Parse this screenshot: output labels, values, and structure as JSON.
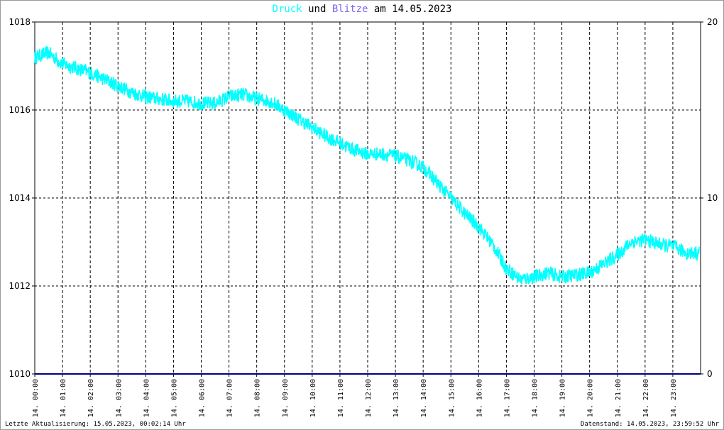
{
  "title": {
    "series1": "Druck",
    "connector": "und",
    "series2": "Blitze",
    "date_prefix": "am",
    "date": "14.05.2023"
  },
  "footer": {
    "left": "Letzte Aktualisierung: 15.05.2023, 00:02:14 Uhr",
    "right": "Datenstand: 14.05.2023, 23:59:52 Uhr"
  },
  "colors": {
    "pressure": "#00ffff",
    "lightning": "#7b68ee",
    "baseline": "#000080",
    "grid": "#000000",
    "background": "#ffffff"
  },
  "chart_data": {
    "type": "line",
    "x_tick_labels": [
      "14. 00:00",
      "14. 01:00",
      "14. 02:00",
      "14. 03:00",
      "14. 04:00",
      "14. 05:00",
      "14. 06:00",
      "14. 07:00",
      "14. 08:00",
      "14. 09:00",
      "14. 10:00",
      "14. 11:00",
      "14. 12:00",
      "14. 13:00",
      "14. 14:00",
      "14. 15:00",
      "14. 16:00",
      "14. 17:00",
      "14. 18:00",
      "14. 19:00",
      "14. 20:00",
      "14. 21:00",
      "14. 22:00",
      "14. 23:00"
    ],
    "y_left": {
      "ylim": [
        1010,
        1018
      ],
      "ticks": [
        "1010",
        "1012",
        "1014",
        "1016",
        "1018"
      ]
    },
    "y_right": {
      "ylim": [
        0,
        20
      ],
      "ticks": [
        "0",
        "10",
        "20"
      ]
    },
    "x_range_hours": [
      0,
      24
    ],
    "grid": true,
    "series": [
      {
        "name": "Druck",
        "axis": "left",
        "points": [
          [
            0.0,
            1017.2
          ],
          [
            0.5,
            1017.3
          ],
          [
            1.0,
            1017.05
          ],
          [
            1.5,
            1016.95
          ],
          [
            2.0,
            1016.85
          ],
          [
            2.5,
            1016.7
          ],
          [
            3.0,
            1016.55
          ],
          [
            3.5,
            1016.4
          ],
          [
            4.0,
            1016.3
          ],
          [
            4.5,
            1016.25
          ],
          [
            5.0,
            1016.2
          ],
          [
            5.5,
            1016.2
          ],
          [
            6.0,
            1016.15
          ],
          [
            6.5,
            1016.15
          ],
          [
            7.0,
            1016.3
          ],
          [
            7.5,
            1016.35
          ],
          [
            8.0,
            1016.25
          ],
          [
            8.5,
            1016.2
          ],
          [
            9.0,
            1016.0
          ],
          [
            9.5,
            1015.8
          ],
          [
            10.0,
            1015.6
          ],
          [
            10.5,
            1015.4
          ],
          [
            11.0,
            1015.25
          ],
          [
            11.5,
            1015.1
          ],
          [
            12.0,
            1015.0
          ],
          [
            12.5,
            1015.0
          ],
          [
            13.0,
            1014.95
          ],
          [
            13.5,
            1014.85
          ],
          [
            14.0,
            1014.7
          ],
          [
            14.5,
            1014.35
          ],
          [
            15.0,
            1014.0
          ],
          [
            15.5,
            1013.65
          ],
          [
            16.0,
            1013.35
          ],
          [
            16.5,
            1012.95
          ],
          [
            17.0,
            1012.4
          ],
          [
            17.5,
            1012.15
          ],
          [
            18.0,
            1012.2
          ],
          [
            18.5,
            1012.3
          ],
          [
            19.0,
            1012.2
          ],
          [
            19.5,
            1012.25
          ],
          [
            20.0,
            1012.3
          ],
          [
            20.5,
            1012.5
          ],
          [
            21.0,
            1012.7
          ],
          [
            21.5,
            1013.0
          ],
          [
            22.0,
            1013.05
          ],
          [
            22.5,
            1012.95
          ],
          [
            23.0,
            1012.9
          ],
          [
            23.5,
            1012.75
          ],
          [
            23.95,
            1012.75
          ]
        ]
      },
      {
        "name": "Blitze",
        "axis": "right",
        "points": [
          [
            0,
            0
          ],
          [
            24,
            0
          ]
        ]
      }
    ]
  }
}
